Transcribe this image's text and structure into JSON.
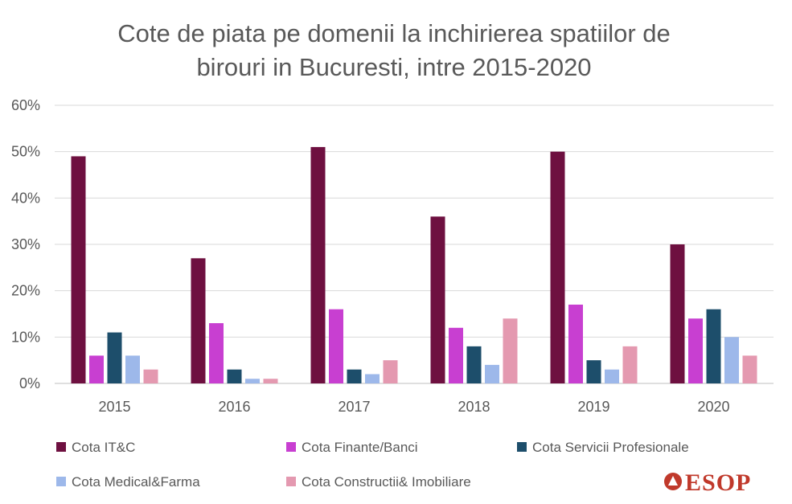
{
  "chart_data": {
    "type": "bar",
    "title": "Cote de piata pe domenii la inchirierea spatiilor de birouri in Bucuresti, intre 2015-2020",
    "title_lines": [
      "Cote de piata pe domenii la inchirierea spatiilor de",
      "birouri in Bucuresti, intre 2015-2020"
    ],
    "xlabel": "",
    "ylabel": "",
    "ylim": [
      0,
      60
    ],
    "yticks": [
      0,
      10,
      20,
      30,
      40,
      50,
      60
    ],
    "ytick_labels": [
      "0%",
      "10%",
      "20%",
      "30%",
      "40%",
      "50%",
      "60%"
    ],
    "grid": true,
    "legend_position": "bottom",
    "categories": [
      "2015",
      "2016",
      "2017",
      "2018",
      "2019",
      "2020"
    ],
    "series": [
      {
        "name": "Cota IT&C",
        "color": "#6e1040",
        "values": [
          49,
          27,
          51,
          36,
          50,
          30
        ]
      },
      {
        "name": "Cota Finante/Banci",
        "color": "#c83fd1",
        "values": [
          6,
          13,
          16,
          12,
          17,
          14
        ]
      },
      {
        "name": "Cota Servicii Profesionale",
        "color": "#1d4e6b",
        "values": [
          11,
          3,
          3,
          8,
          5,
          16
        ]
      },
      {
        "name": "Cota Medical&Farma",
        "color": "#9db8ea",
        "values": [
          6,
          1,
          2,
          4,
          3,
          10
        ]
      },
      {
        "name": "Cota Constructii& Imobiliare",
        "color": "#e499b0",
        "values": [
          3,
          1,
          5,
          14,
          8,
          6
        ]
      }
    ]
  },
  "logo": {
    "text": "ESOP",
    "color": "#c0392b"
  },
  "colors": {
    "gridline": "#d9d9d9",
    "axis": "#bfbfbf",
    "text": "#595959"
  }
}
